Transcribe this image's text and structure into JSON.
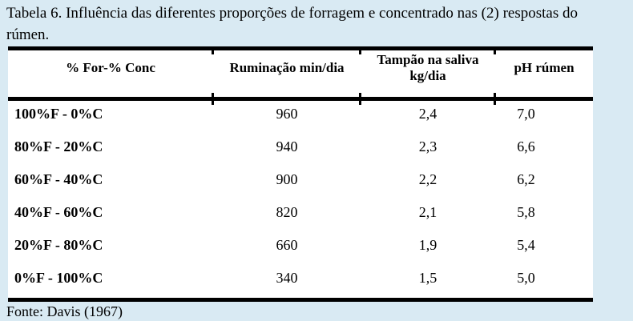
{
  "colors": {
    "page_background": "#d9eaf3",
    "table_background": "#ffffff",
    "text": "#000000",
    "rule": "#000000"
  },
  "caption": {
    "lines": [
      "Tabela 6. Influência das diferentes proporções de forragem e concentrado nas (2) respostas do",
      "rúmen."
    ]
  },
  "table": {
    "headers": [
      {
        "lines": [
          "% For-% Conc"
        ]
      },
      {
        "lines": [
          "Ruminação min/dia"
        ]
      },
      {
        "lines": [
          "Tampão na saliva",
          "kg/dia"
        ]
      },
      {
        "lines": [
          "pH rúmen"
        ]
      }
    ],
    "rows": [
      {
        "label": "100%F - 0%C",
        "ruminacao": "960",
        "tampao": "2,4",
        "ph": "7,0"
      },
      {
        "label": "80%F - 20%C",
        "ruminacao": "940",
        "tampao": "2,3",
        "ph": "6,6"
      },
      {
        "label": "60%F - 40%C",
        "ruminacao": "900",
        "tampao": "2,2",
        "ph": "6,2"
      },
      {
        "label": "40%F - 60%C",
        "ruminacao": "820",
        "tampao": "2,1",
        "ph": "5,8"
      },
      {
        "label": "20%F - 80%C",
        "ruminacao": "660",
        "tampao": "1,9",
        "ph": "5,4"
      },
      {
        "label": "0%F - 100%C",
        "ruminacao": "340",
        "tampao": "1,5",
        "ph": "5,0"
      }
    ]
  },
  "footer": {
    "source": "Fonte: Davis (1967)"
  }
}
